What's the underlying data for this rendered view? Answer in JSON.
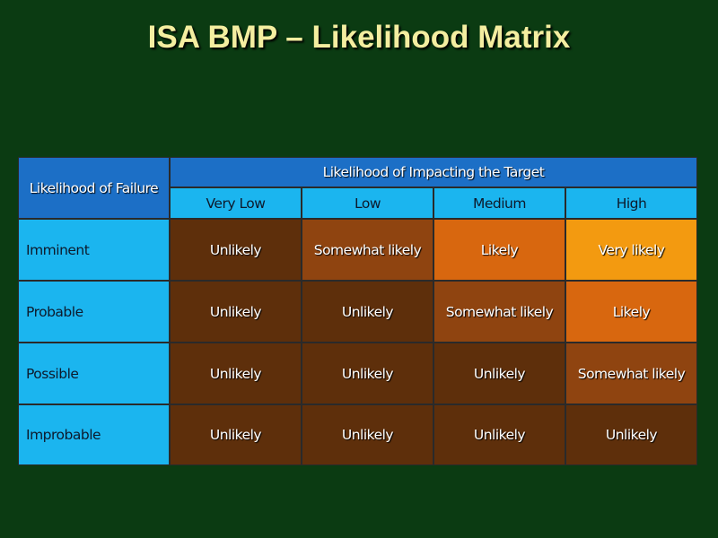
{
  "header": {
    "title": "ISA BMP – Likelihood Matrix"
  },
  "table": {
    "corner": "Likelihood of Failure",
    "group_header": "Likelihood of Impacting the Target",
    "columns": [
      "Very Low",
      "Low",
      "Medium",
      "High"
    ],
    "rows": [
      [
        "Imminent",
        "Unlikely",
        "Somewhat likely",
        "Likely",
        "Very likely"
      ],
      [
        "Probable",
        "Unlikely",
        "Unlikely",
        "Somewhat likely",
        "Likely"
      ],
      [
        "Possible",
        "Unlikely",
        "Unlikely",
        "Unlikely",
        "Somewhat likely"
      ],
      [
        "Improbable",
        "Unlikely",
        "Unlikely",
        "Unlikely",
        "Unlikely"
      ]
    ],
    "cell_colors": [
      [
        "#5e2f0b",
        "#8f4410",
        "#d8670f",
        "#f39a10"
      ],
      [
        "#5e2f0b",
        "#5e2f0b",
        "#8f4410",
        "#d8670f"
      ],
      [
        "#5e2f0b",
        "#5e2f0b",
        "#5e2f0b",
        "#8f4410"
      ],
      [
        "#5e2f0b",
        "#5e2f0b",
        "#5e2f0b",
        "#5e2f0b"
      ]
    ]
  }
}
